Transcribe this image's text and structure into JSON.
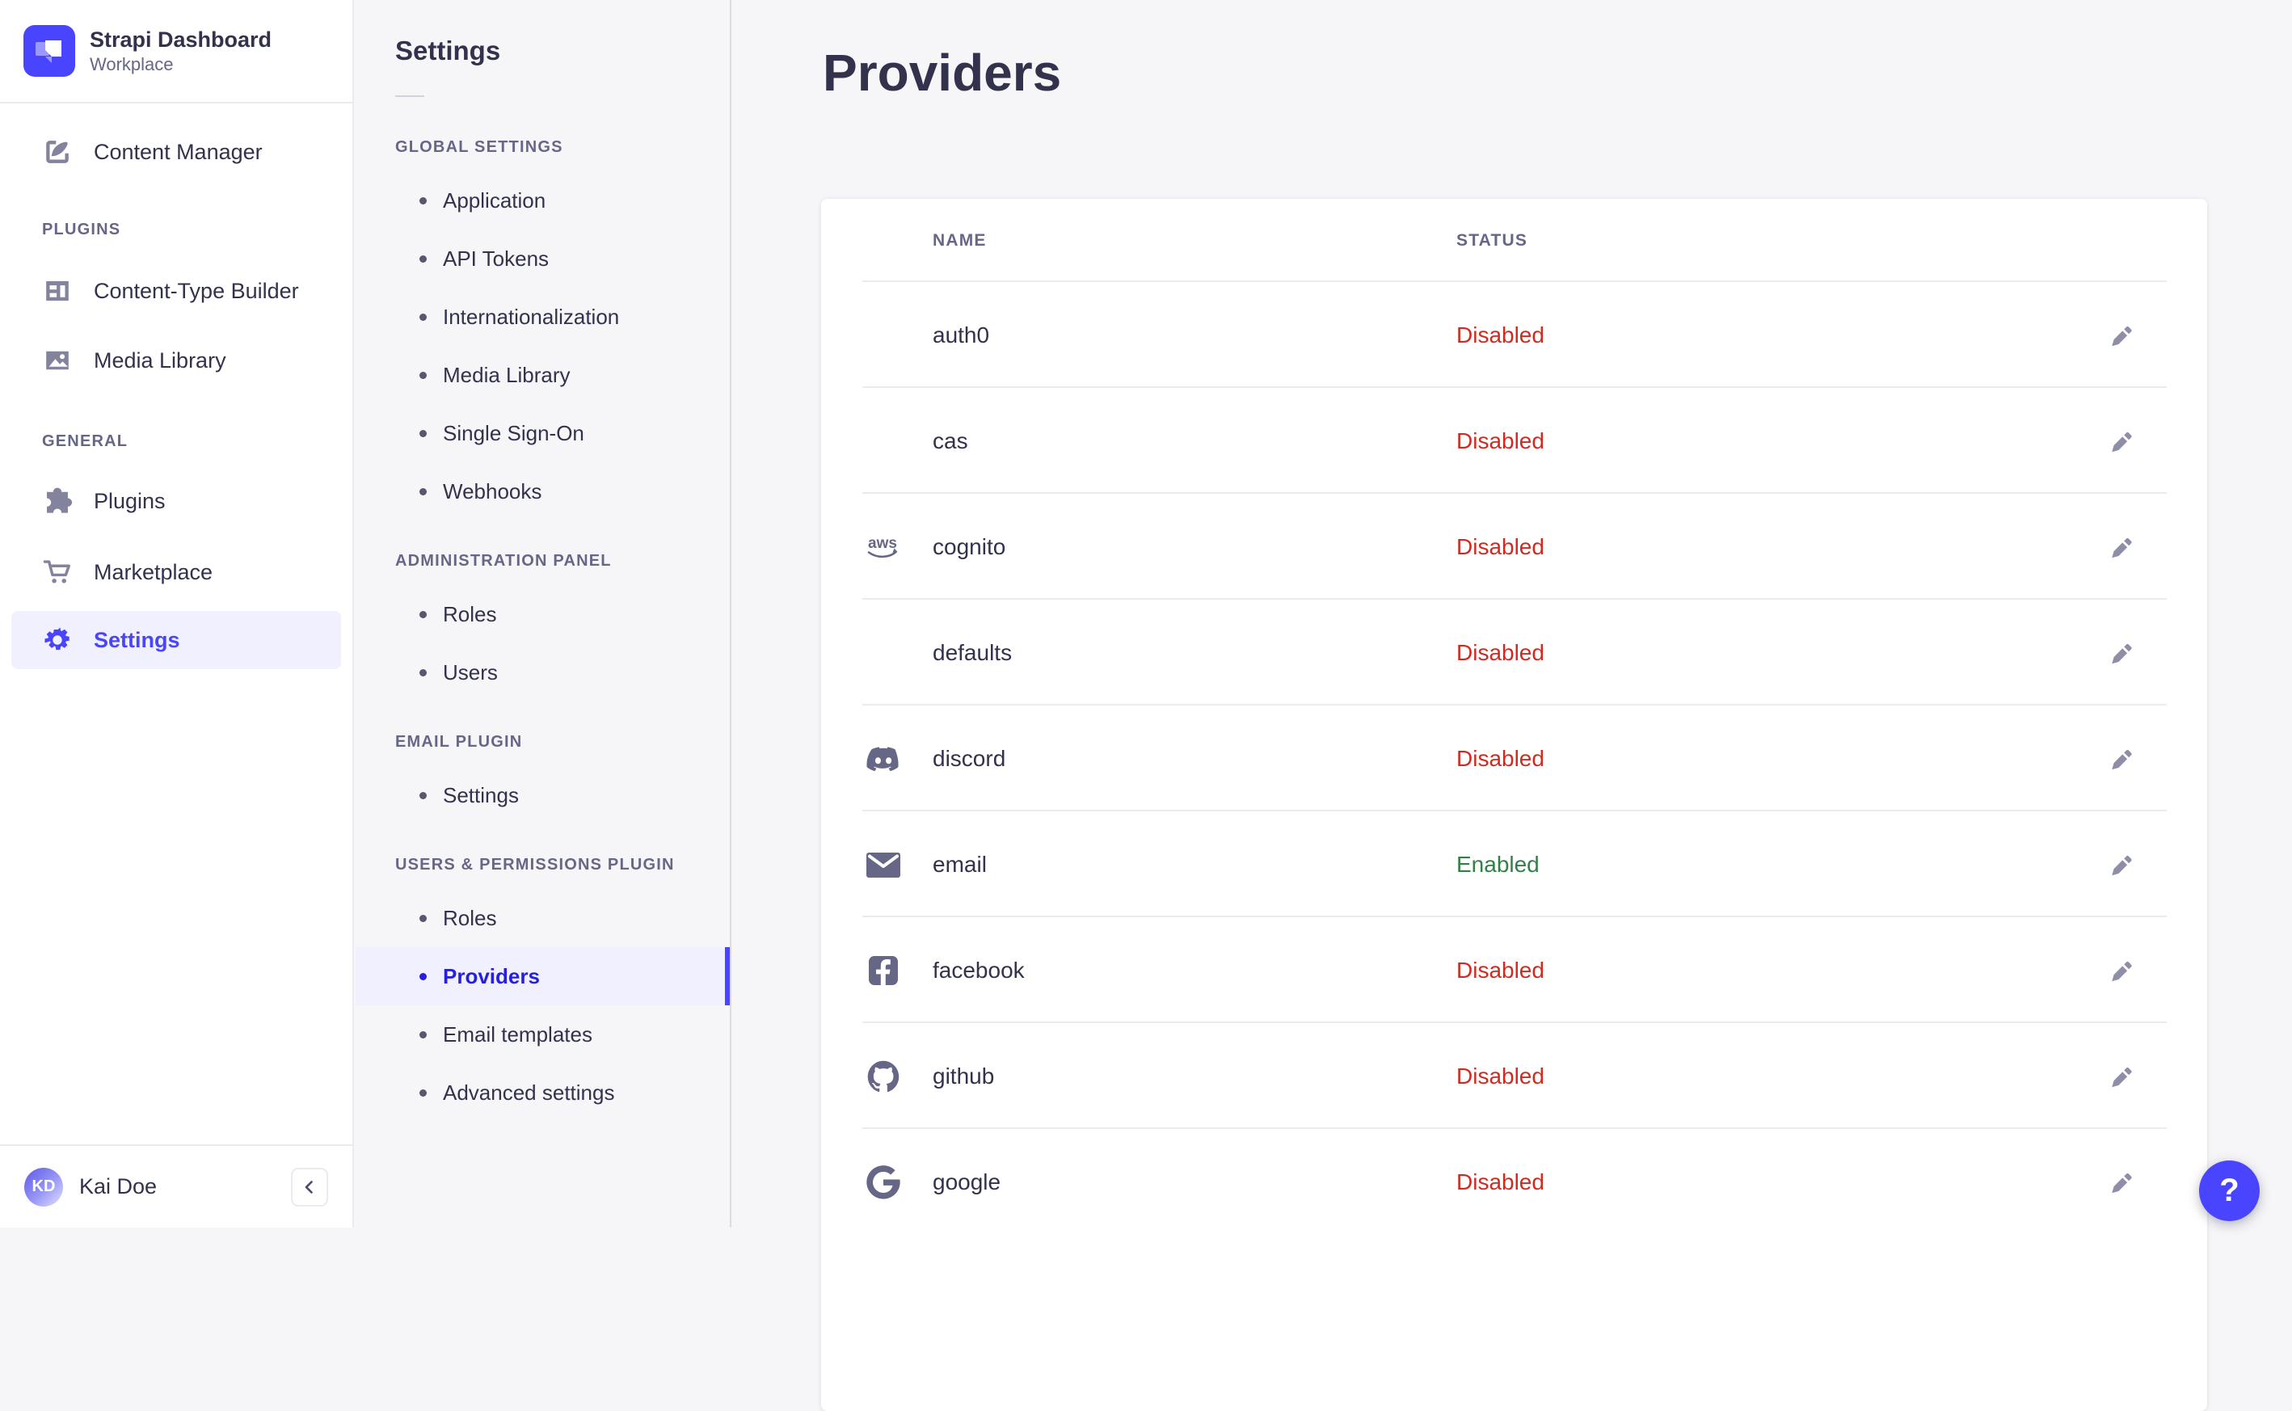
{
  "brand": {
    "title": "Strapi Dashboard",
    "subtitle": "Workplace"
  },
  "sidebar": {
    "sections": [
      {
        "header": null,
        "items": [
          {
            "label": "Content Manager",
            "icon": "content-manager-icon",
            "selected": false,
            "m": "m-cm"
          }
        ]
      },
      {
        "header": "PLUGINS",
        "header_m": "m-h-plugins",
        "items": [
          {
            "label": "Content-Type Builder",
            "icon": "content-type-builder-icon",
            "selected": false,
            "m": "m-ctb"
          },
          {
            "label": "Media Library",
            "icon": "media-library-icon",
            "selected": false,
            "m": "m-ml"
          }
        ]
      },
      {
        "header": "GENERAL",
        "header_m": "m-h-general",
        "items": [
          {
            "label": "Plugins",
            "icon": "plugins-icon",
            "selected": false,
            "m": "m-pl"
          },
          {
            "label": "Marketplace",
            "icon": "marketplace-icon",
            "selected": false,
            "m": "m-mk"
          },
          {
            "label": "Settings",
            "icon": "settings-icon",
            "selected": true,
            "m": "m-st"
          }
        ]
      }
    ],
    "user": {
      "initials": "KD",
      "name": "Kai Doe"
    }
  },
  "subnav": {
    "title": "Settings",
    "sections": [
      {
        "header": "GLOBAL SETTINGS",
        "items": [
          {
            "label": "Application"
          },
          {
            "label": "API Tokens"
          },
          {
            "label": "Internationalization"
          },
          {
            "label": "Media Library"
          },
          {
            "label": "Single Sign-On"
          },
          {
            "label": "Webhooks"
          }
        ]
      },
      {
        "header": "ADMINISTRATION PANEL",
        "items": [
          {
            "label": "Roles"
          },
          {
            "label": "Users"
          }
        ]
      },
      {
        "header": "EMAIL PLUGIN",
        "items": [
          {
            "label": "Settings"
          }
        ]
      },
      {
        "header": "USERS & PERMISSIONS PLUGIN",
        "items": [
          {
            "label": "Roles"
          },
          {
            "label": "Providers",
            "selected": true
          },
          {
            "label": "Email templates"
          },
          {
            "label": "Advanced settings"
          }
        ]
      }
    ]
  },
  "main": {
    "title": "Providers",
    "table": {
      "columns": [
        "NAME",
        "STATUS"
      ],
      "rows": [
        {
          "name": "auth0",
          "icon": null,
          "status": "Disabled"
        },
        {
          "name": "cas",
          "icon": null,
          "status": "Disabled"
        },
        {
          "name": "cognito",
          "icon": "aws-icon",
          "status": "Disabled"
        },
        {
          "name": "defaults",
          "icon": null,
          "status": "Disabled"
        },
        {
          "name": "discord",
          "icon": "discord-icon",
          "status": "Disabled"
        },
        {
          "name": "email",
          "icon": "email-icon",
          "status": "Enabled"
        },
        {
          "name": "facebook",
          "icon": "facebook-icon",
          "status": "Disabled"
        },
        {
          "name": "github",
          "icon": "github-icon",
          "status": "Disabled"
        },
        {
          "name": "google",
          "icon": "google-icon",
          "status": "Disabled"
        }
      ]
    }
  },
  "help_label": "?",
  "colors": {
    "primary": "#4945ff",
    "primary_dark": "#271fe0",
    "primary_bg": "#f0f0ff",
    "danger": "#d02b20",
    "success": "#328048"
  }
}
